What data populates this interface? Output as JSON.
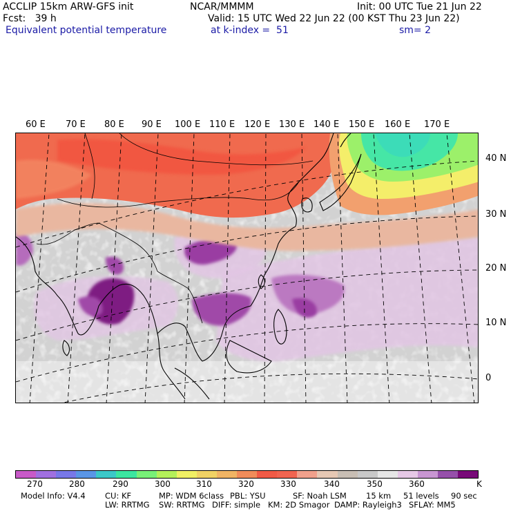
{
  "header": {
    "model": "ACCLIP 15km ARW-GFS init",
    "center": "NCAR/MMMM",
    "init": "Init: 00 UTC Tue 21 Jun 22",
    "fcst": "Fcst:   39 h",
    "valid": "Valid: 15 UTC Wed 22 Jun 22 (00 KST Thu 23 Jun 22)",
    "field": "Equivalent potential temperature",
    "level": "at k-index =  51",
    "smooth": "sm= 2"
  },
  "longitude_labels": [
    "60 E",
    "70 E",
    "80 E",
    "90 E",
    "100 E",
    "110 E",
    "120 E",
    "130 E",
    "140 E",
    "150 E",
    "160 E",
    "170 E"
  ],
  "latitude_labels": [
    "40 N",
    "30 N",
    "20 N",
    "10 N",
    "0"
  ],
  "colorbar": {
    "colors": [
      "#c85ac8",
      "#a070e0",
      "#7878e8",
      "#5a96e6",
      "#3cc8c8",
      "#3ce6a0",
      "#78f078",
      "#b4f05a",
      "#f0f064",
      "#f0d264",
      "#f0b464",
      "#f08c5a",
      "#f05a46",
      "#f06450",
      "#f0a08c",
      "#e6c8b4",
      "#c8beb4",
      "#c8c8c8",
      "#e6e6e6",
      "#e6c8e6",
      "#c896d2",
      "#9650aa",
      "#780a78"
    ],
    "labels": [
      "270",
      "280",
      "290",
      "300",
      "310",
      "320",
      "330",
      "340",
      "350",
      "360"
    ],
    "unit": "K"
  },
  "footer": {
    "line1": [
      "Model Info: V4.4",
      "CU: KF",
      "MP: WDM 6class",
      "PBL: YSU",
      "SF: Noah LSM",
      "15 km",
      "51 levels",
      "90 sec"
    ],
    "line2": [
      "LW: RRTMG",
      "SW: RRTMG",
      "DIFF: simple",
      "KM: 2D Smagor",
      "DAMP: Rayleigh3",
      "SFLAY: MM5"
    ]
  }
}
